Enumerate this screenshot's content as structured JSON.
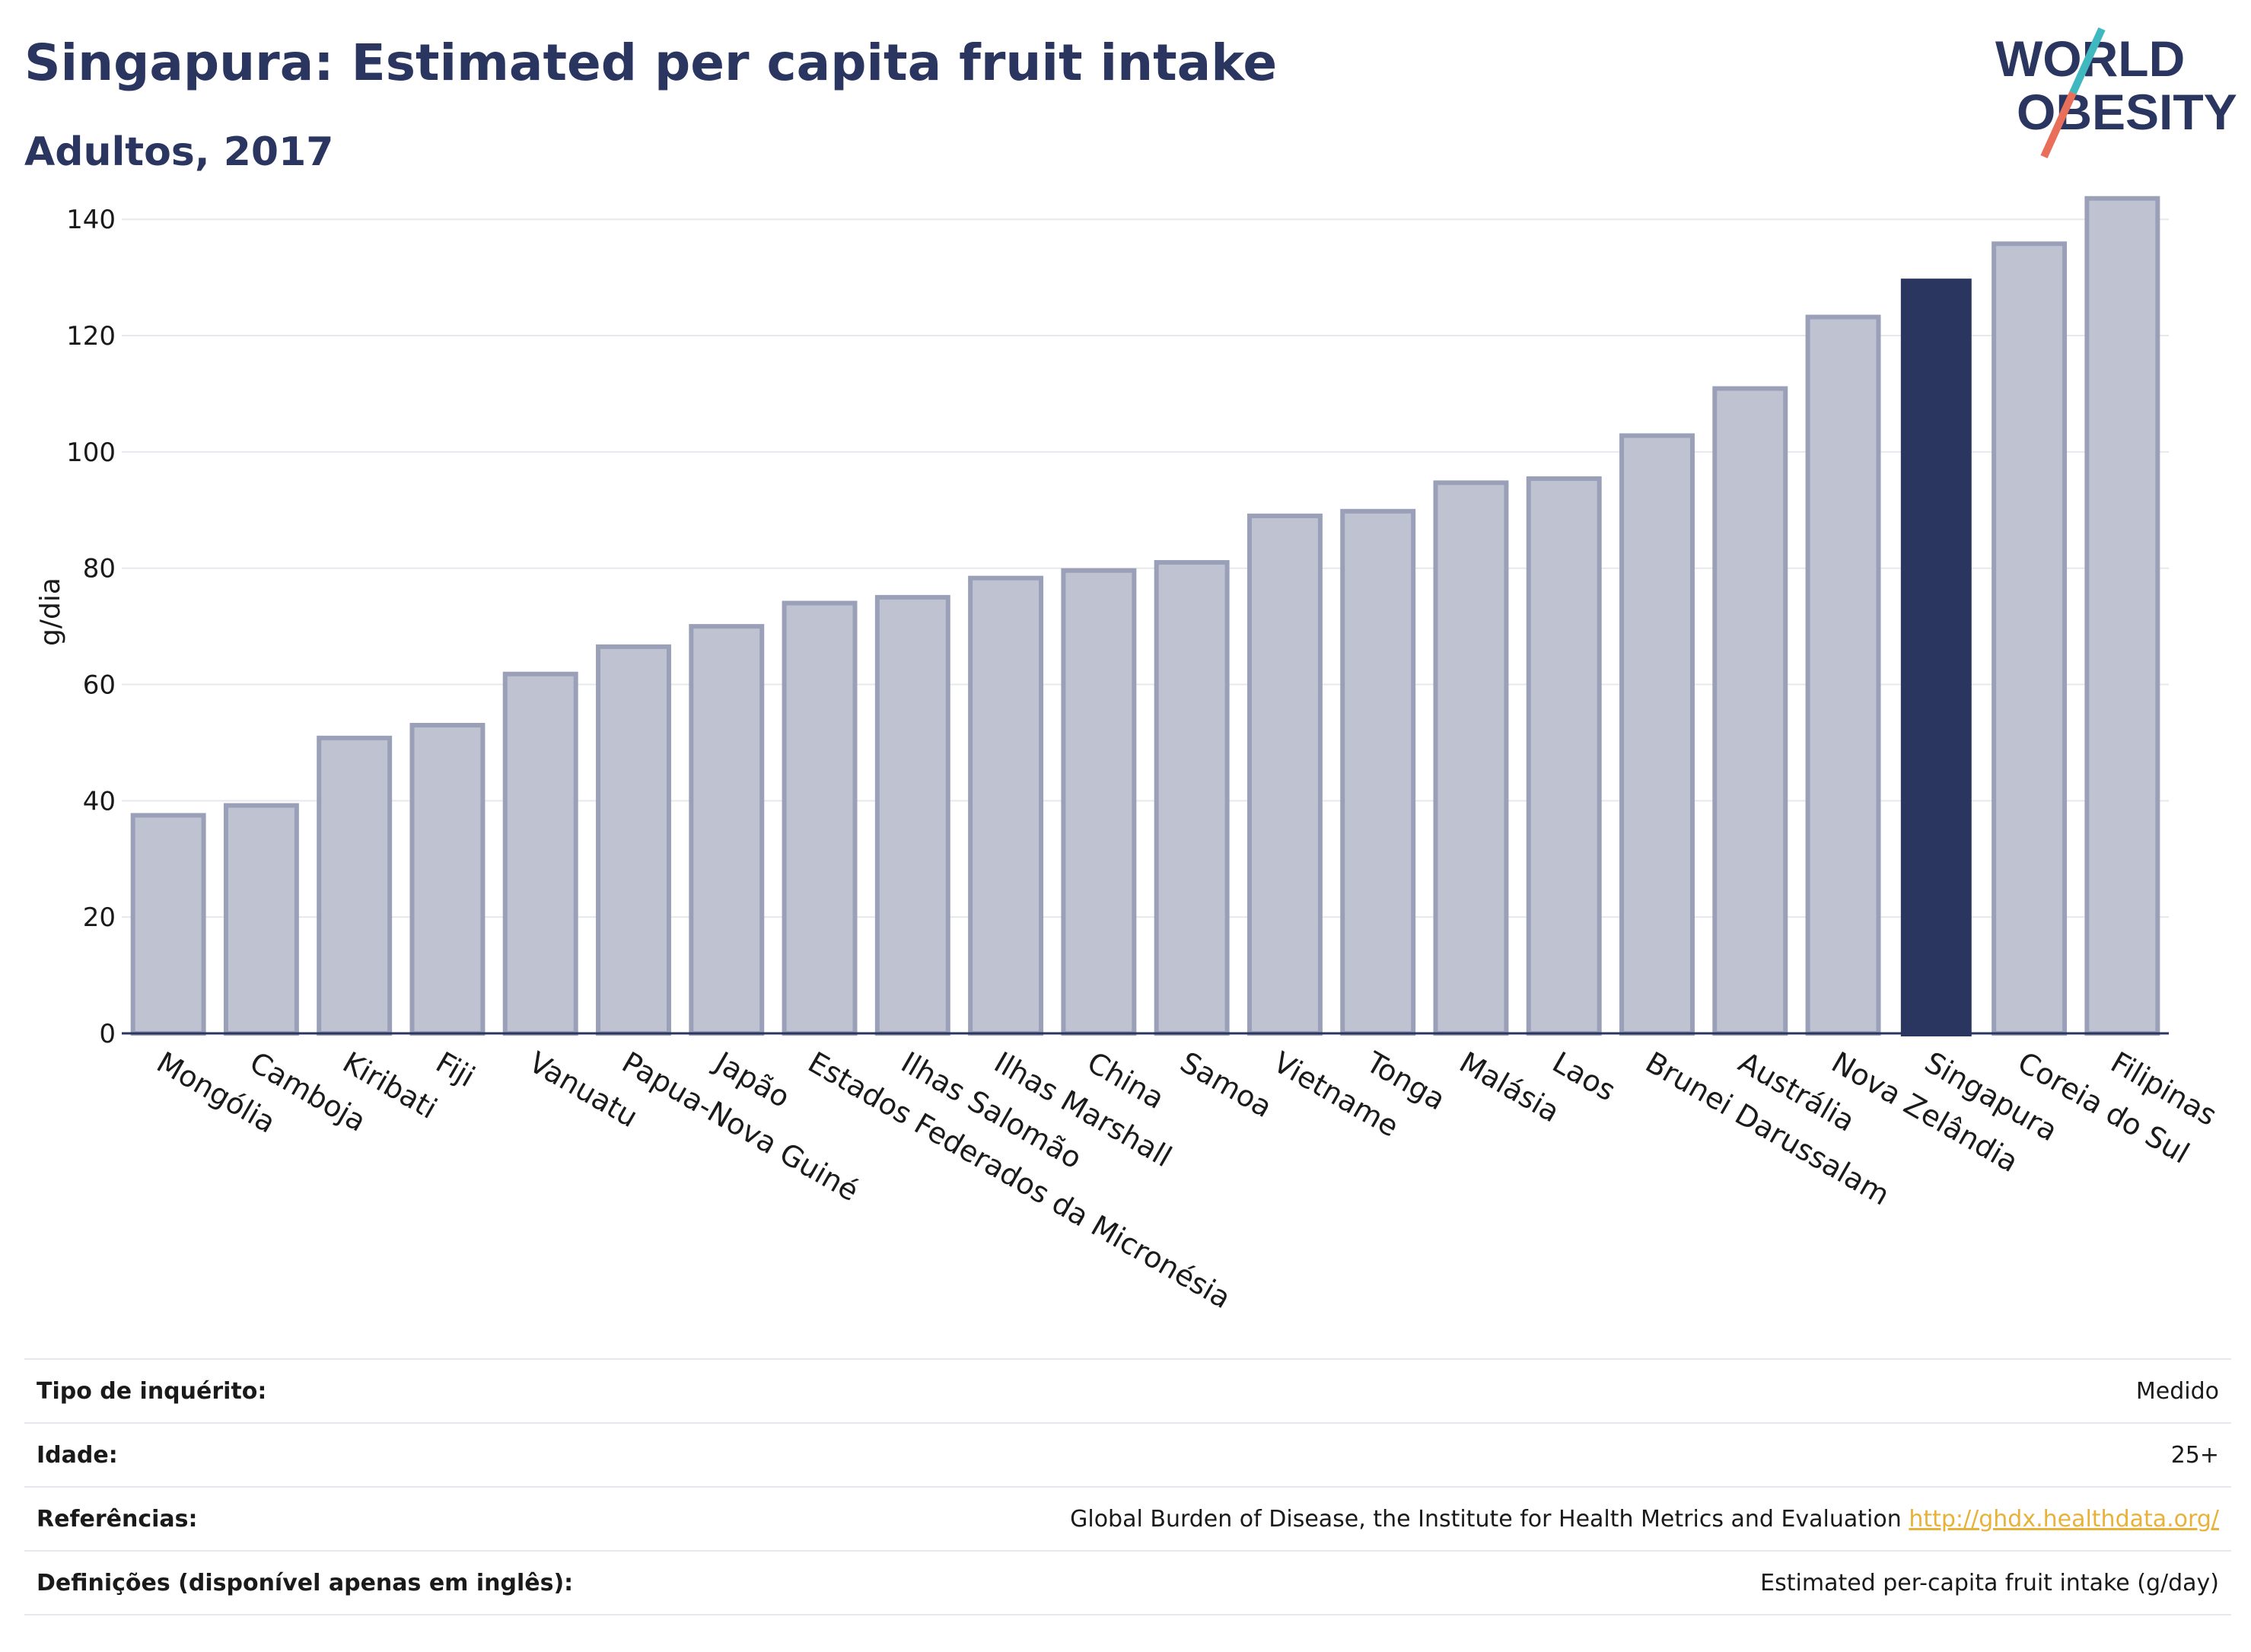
{
  "header": {
    "title": "Singapura: Estimated per capita fruit intake",
    "subtitle": "Adultos, 2017"
  },
  "logo": {
    "line1": "WORLD",
    "line2": "OBESITY",
    "accent_colors": [
      "#3fb8c0",
      "#e8705a"
    ]
  },
  "colors": {
    "bar": "#bfc3d1",
    "bar_stroke": "#9aa0b8",
    "highlight": "#2a3560",
    "grid": "#e6e8ee",
    "axis": "#2a3560"
  },
  "chart_data": {
    "type": "bar",
    "ylabel": "g/dia",
    "ylim": [
      0,
      145
    ],
    "yticks": [
      0,
      20,
      40,
      60,
      80,
      100,
      120,
      140
    ],
    "grid": true,
    "highlight": "Singapura",
    "categories": [
      "Mongólia",
      "Camboja",
      "Kiribati",
      "Fiji",
      "Vanuatu",
      "Papua-Nova Guiné",
      "Japão",
      "Estados Federados da Micronésia",
      "Ilhas Salomão",
      "Ilhas Marshall",
      "China",
      "Samoa",
      "Vietname",
      "Tonga",
      "Malásia",
      "Laos",
      "Brunei Darussalam",
      "Austrália",
      "Nova Zelândia",
      "Singapura",
      "Coreia do Sul",
      "Filipinas"
    ],
    "values": [
      37.5,
      39.2,
      50.8,
      53,
      61.8,
      66.5,
      70,
      74,
      75,
      78.3,
      79.6,
      81,
      89,
      89.8,
      94.7,
      95.4,
      102.8,
      110.9,
      123.2,
      129.8,
      135.8,
      143.6
    ]
  },
  "info": {
    "rows": [
      {
        "label": "Tipo de inquérito:",
        "value": "Medido"
      },
      {
        "label": "Idade:",
        "value": "25+"
      },
      {
        "label": "Referências:",
        "value": "Global Burden of Disease, the Institute for Health Metrics and Evaluation",
        "link": "http://ghdx.healthdata.org/"
      },
      {
        "label": "Definições (disponível apenas em inglês):",
        "value": "Estimated per-capita fruit intake (g/day)"
      }
    ]
  }
}
